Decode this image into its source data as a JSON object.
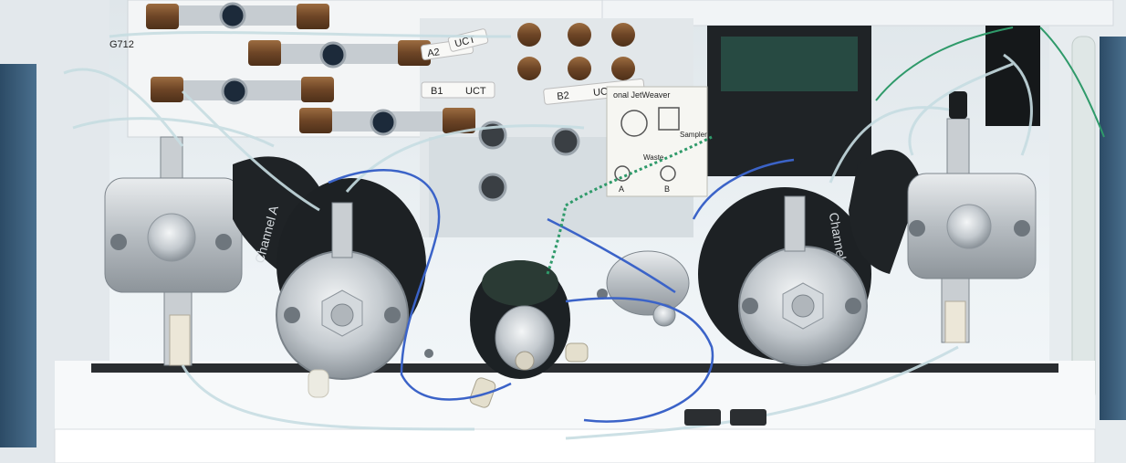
{
  "photo": {
    "subject": "HPLC binary pump module, front panel open",
    "part_number_fragment": "G712",
    "tags": {
      "a2": "A2",
      "b1": "B1",
      "b2": "B2",
      "uct": "UCT"
    },
    "jetweaver": {
      "title": "onal JetWeaver",
      "sampler": "Sampler",
      "waste": "Waste",
      "port_a": "A",
      "port_b": "B"
    },
    "pump_heads": {
      "left": "Channel A",
      "right": "Channel B"
    },
    "colors": {
      "chassis": "#eef2f5",
      "steel": "#b9bfc5",
      "black_housing": "#1f2326",
      "blue_capillary": "#3b63c8",
      "green_capillary": "#2f9a6a",
      "brown_fitting": "#7a5230",
      "window_tint": "#2c4b66"
    }
  }
}
